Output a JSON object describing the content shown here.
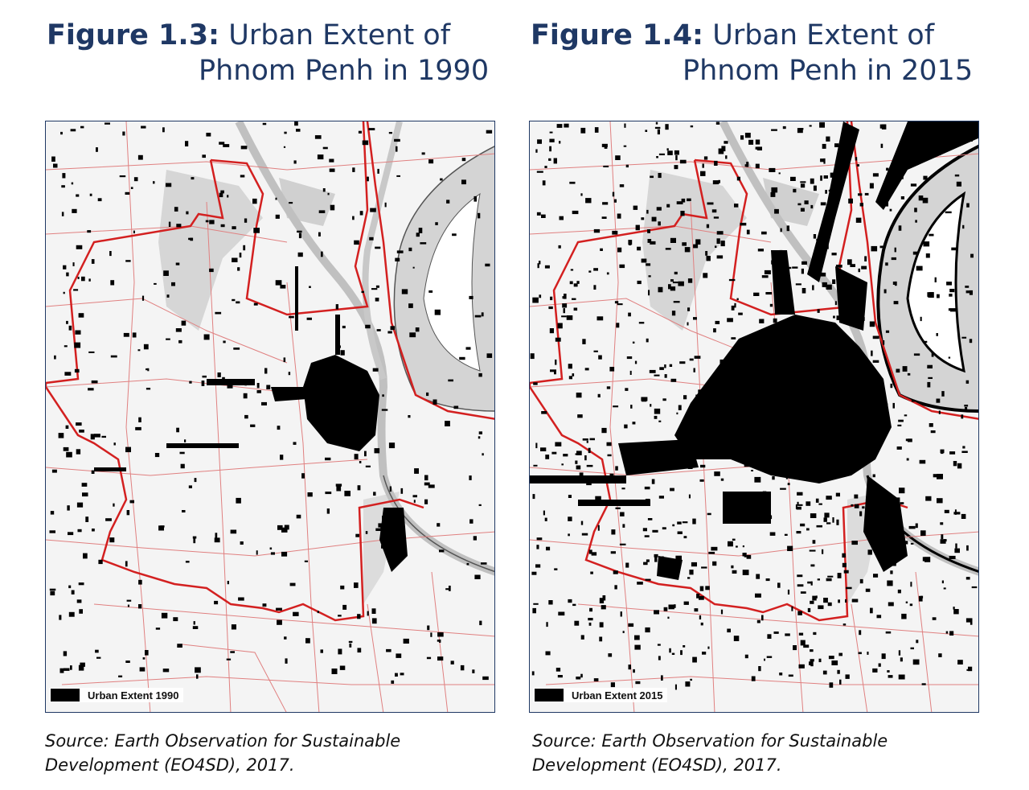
{
  "figures": [
    {
      "label": "Figure 1.3:",
      "title_line1": "Urban Extent of",
      "title_line2": "Phnom Penh in 1990",
      "legend": "Urban Extent 1990",
      "source_line1": "Source: Earth Observation for Sustainable",
      "source_line2": "Development (EO4SD), 2017.",
      "urban_level": "low"
    },
    {
      "label": "Figure 1.4:",
      "title_line1": "Urban Extent of",
      "title_line2": "Phnom Penh in 2015",
      "legend": "Urban Extent 2015",
      "source_line1": "Source: Earth Observation for Sustainable",
      "source_line2": "Development (EO4SD), 2017.",
      "urban_level": "high"
    }
  ],
  "colors": {
    "title": "#1f3864",
    "boundary": "#d32020",
    "roads": "#e08080",
    "urban": "#000000",
    "water": "#c8c8c8",
    "background": "#f4f4f4"
  }
}
